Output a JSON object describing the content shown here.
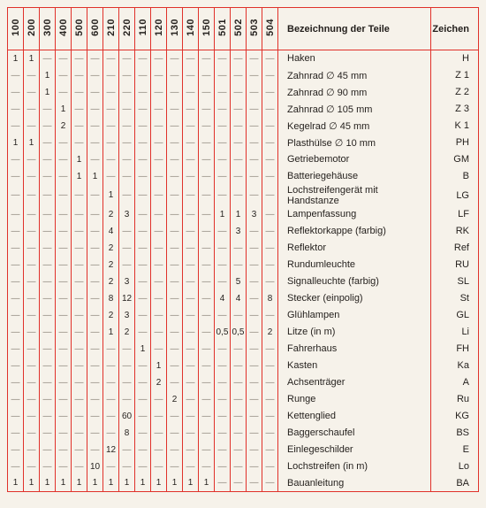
{
  "title": "Bezeichnung der Teile",
  "sign_header": "Zeichen",
  "accent_color": "#e0312a",
  "background_color": "#f6f2ea",
  "text_color": "#231f1c",
  "dash": "—",
  "columns": [
    "100",
    "200",
    "300",
    "400",
    "500",
    "600",
    "210",
    "220",
    "110",
    "120",
    "130",
    "140",
    "150",
    "501",
    "502",
    "503",
    "504"
  ],
  "rows": [
    {
      "label": "Haken",
      "sign": "H",
      "v": [
        "1",
        "1",
        "",
        "",
        "",
        "",
        "",
        "",
        "",
        "",
        "",
        "",
        "",
        "",
        "",
        "",
        ""
      ]
    },
    {
      "label": "Zahnrad  ∅  45 mm",
      "sign": "Z 1",
      "v": [
        "",
        "",
        "1",
        "",
        "",
        "",
        "",
        "",
        "",
        "",
        "",
        "",
        "",
        "",
        "",
        "",
        ""
      ]
    },
    {
      "label": "Zahnrad  ∅  90 mm",
      "sign": "Z 2",
      "v": [
        "",
        "",
        "1",
        "",
        "",
        "",
        "",
        "",
        "",
        "",
        "",
        "",
        "",
        "",
        "",
        "",
        ""
      ]
    },
    {
      "label": "Zahnrad  ∅ 105 mm",
      "sign": "Z 3",
      "v": [
        "",
        "",
        "",
        "1",
        "",
        "",
        "",
        "",
        "",
        "",
        "",
        "",
        "",
        "",
        "",
        "",
        ""
      ]
    },
    {
      "label": "Kegelrad  ∅  45 mm",
      "sign": "K 1",
      "v": [
        "",
        "",
        "",
        "2",
        "",
        "",
        "",
        "",
        "",
        "",
        "",
        "",
        "",
        "",
        "",
        "",
        ""
      ]
    },
    {
      "label": "Plasthülse ∅  10 mm",
      "sign": "PH",
      "v": [
        "1",
        "1",
        "",
        "",
        "",
        "",
        "",
        "",
        "",
        "",
        "",
        "",
        "",
        "",
        "",
        "",
        ""
      ]
    },
    {
      "label": "Getriebemotor",
      "sign": "GM",
      "v": [
        "",
        "",
        "",
        "",
        "1",
        "",
        "",
        "",
        "",
        "",
        "",
        "",
        "",
        "",
        "",
        "",
        ""
      ]
    },
    {
      "label": "Batteriegehäuse",
      "sign": "B",
      "v": [
        "",
        "",
        "",
        "",
        "1",
        "1",
        "",
        "",
        "",
        "",
        "",
        "",
        "",
        "",
        "",
        "",
        ""
      ]
    },
    {
      "label": "Lochstreifengerät mit Handstanze",
      "sign": "LG",
      "v": [
        "",
        "",
        "",
        "",
        "",
        "",
        "1",
        "",
        "",
        "",
        "",
        "",
        "",
        "",
        "",
        "",
        ""
      ]
    },
    {
      "label": "Lampenfassung",
      "sign": "LF",
      "v": [
        "",
        "",
        "",
        "",
        "",
        "",
        "2",
        "3",
        "",
        "",
        "",
        "",
        "",
        "1",
        "1",
        "3",
        ""
      ]
    },
    {
      "label": "Reflektorkappe (farbig)",
      "sign": "RK",
      "v": [
        "",
        "",
        "",
        "",
        "",
        "",
        "4",
        "",
        "",
        "",
        "",
        "",
        "",
        "",
        "3",
        "",
        ""
      ]
    },
    {
      "label": "Reflektor",
      "sign": "Ref",
      "v": [
        "",
        "",
        "",
        "",
        "",
        "",
        "2",
        "",
        "",
        "",
        "",
        "",
        "",
        "",
        "",
        "",
        ""
      ]
    },
    {
      "label": "Rundumleuchte",
      "sign": "RU",
      "v": [
        "",
        "",
        "",
        "",
        "",
        "",
        "2",
        "",
        "",
        "",
        "",
        "",
        "",
        "",
        "",
        "",
        ""
      ]
    },
    {
      "label": "Signalleuchte (farbig)",
      "sign": "SL",
      "v": [
        "",
        "",
        "",
        "",
        "",
        "",
        "2",
        "3",
        "",
        "",
        "",
        "",
        "",
        "",
        "5",
        "",
        ""
      ]
    },
    {
      "label": "Stecker (einpolig)",
      "sign": "St",
      "v": [
        "",
        "",
        "",
        "",
        "",
        "",
        "8",
        "12",
        "",
        "",
        "",
        "",
        "",
        "4",
        "4",
        "",
        "8"
      ]
    },
    {
      "label": "Glühlampen",
      "sign": "GL",
      "v": [
        "",
        "",
        "",
        "",
        "",
        "",
        "2",
        "3",
        "",
        "",
        "",
        "",
        "",
        "",
        "",
        "",
        ""
      ]
    },
    {
      "label": "Litze (in m)",
      "sign": "Li",
      "v": [
        "",
        "",
        "",
        "",
        "",
        "",
        "1",
        "2",
        "",
        "",
        "",
        "",
        "",
        "0,5",
        "0,5",
        "",
        "2"
      ]
    },
    {
      "label": "Fahrerhaus",
      "sign": "FH",
      "v": [
        "",
        "",
        "",
        "",
        "",
        "",
        "",
        "",
        "1",
        "",
        "",
        "",
        "",
        "",
        "",
        "",
        ""
      ]
    },
    {
      "label": "Kasten",
      "sign": "Ka",
      "v": [
        "",
        "",
        "",
        "",
        "",
        "",
        "",
        "",
        "",
        "1",
        "",
        "",
        "",
        "",
        "",
        "",
        ""
      ]
    },
    {
      "label": "Achsenträger",
      "sign": "A",
      "v": [
        "",
        "",
        "",
        "",
        "",
        "",
        "",
        "",
        "",
        "2",
        "",
        "",
        "",
        "",
        "",
        "",
        ""
      ]
    },
    {
      "label": "Runge",
      "sign": "Ru",
      "v": [
        "",
        "",
        "",
        "",
        "",
        "",
        "",
        "",
        "",
        "",
        "2",
        "",
        "",
        "",
        "",
        "",
        ""
      ]
    },
    {
      "label": "Kettenglied",
      "sign": "KG",
      "v": [
        "",
        "",
        "",
        "",
        "",
        "",
        "",
        "60",
        "",
        "",
        "",
        "",
        "",
        "",
        "",
        "",
        ""
      ]
    },
    {
      "label": "Baggerschaufel",
      "sign": "BS",
      "v": [
        "",
        "",
        "",
        "",
        "",
        "",
        "",
        "8",
        "",
        "",
        "",
        "",
        "",
        "",
        "",
        "",
        ""
      ]
    },
    {
      "label": "Einlegeschilder",
      "sign": "E",
      "v": [
        "",
        "",
        "",
        "",
        "",
        "",
        "12",
        "",
        "",
        "",
        "",
        "",
        "",
        "",
        "",
        "",
        ""
      ]
    },
    {
      "label": "Lochstreifen (in m)",
      "sign": "Lo",
      "v": [
        "",
        "",
        "",
        "",
        "",
        "10",
        "",
        "",
        "",
        "",
        "",
        "",
        "",
        "",
        "",
        "",
        ""
      ]
    },
    {
      "label": "Bauanleitung",
      "sign": "BA",
      "v": [
        "1",
        "1",
        "1",
        "1",
        "1",
        "1",
        "1",
        "1",
        "1",
        "1",
        "1",
        "1",
        "1",
        "",
        "",
        "",
        ""
      ]
    }
  ]
}
